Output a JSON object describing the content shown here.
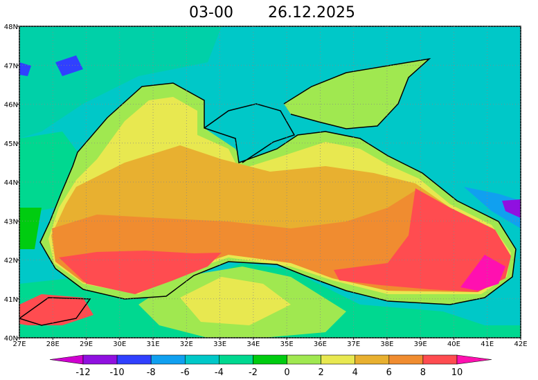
{
  "header": {
    "time": "03-00",
    "date": "26.12.2025"
  },
  "map": {
    "lon_range": [
      27,
      42
    ],
    "lat_range": [
      40,
      48
    ],
    "lon_ticks": [
      {
        "value": 27,
        "label": "27E"
      },
      {
        "value": 28,
        "label": "28E"
      },
      {
        "value": 29,
        "label": "29E"
      },
      {
        "value": 30,
        "label": "30E"
      },
      {
        "value": 31,
        "label": "31E"
      },
      {
        "value": 32,
        "label": "32E"
      },
      {
        "value": 33,
        "label": "33E"
      },
      {
        "value": 34,
        "label": "34E"
      },
      {
        "value": 35,
        "label": "35E"
      },
      {
        "value": 36,
        "label": "36E"
      },
      {
        "value": 37,
        "label": "37E"
      },
      {
        "value": 38,
        "label": "38E"
      },
      {
        "value": 39,
        "label": "39E"
      },
      {
        "value": 40,
        "label": "40E"
      },
      {
        "value": 41,
        "label": "41E"
      },
      {
        "value": 42,
        "label": "42E"
      }
    ],
    "lat_ticks": [
      {
        "value": 40,
        "label": "40N"
      },
      {
        "value": 41,
        "label": "41N"
      },
      {
        "value": 42,
        "label": "42N"
      },
      {
        "value": 43,
        "label": "43N"
      },
      {
        "value": 44,
        "label": "44N"
      },
      {
        "value": 45,
        "label": "45N"
      },
      {
        "value": 46,
        "label": "46N"
      },
      {
        "value": 47,
        "label": "47N"
      },
      {
        "value": 48,
        "label": "48N"
      }
    ],
    "grid": true
  },
  "colorbar": {
    "levels": [
      -12,
      -10,
      -8,
      -6,
      -4,
      -2,
      0,
      2,
      4,
      6,
      8,
      10
    ],
    "colors": [
      "#d000d0",
      "#9010e0",
      "#3040ff",
      "#10a0f0",
      "#00c8c8",
      "#00d890",
      "#00cc10",
      "#a0e850",
      "#e8e850",
      "#e8b030",
      "#f08c30",
      "#ff4c50",
      "#ff10b0"
    ]
  }
}
